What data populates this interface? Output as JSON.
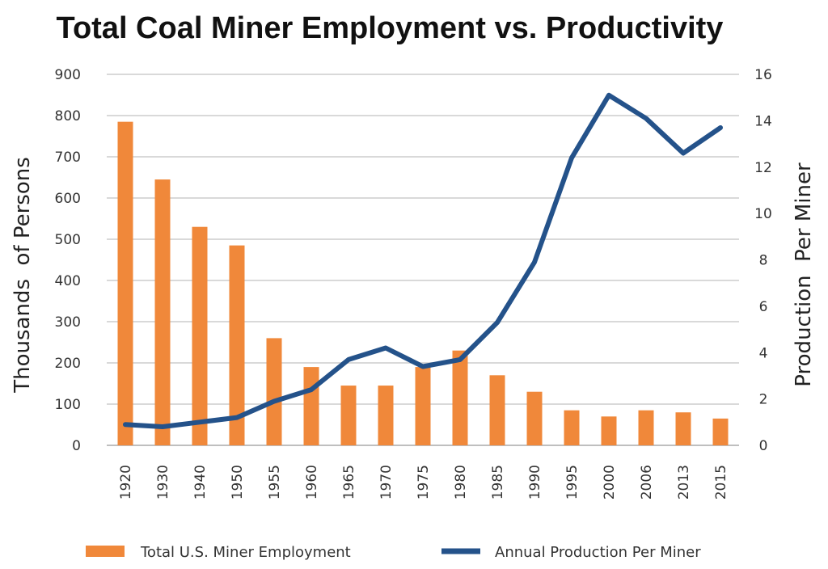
{
  "chart_data": {
    "type": "bar+line",
    "title": "Total Coal Miner Employment vs. Productivity",
    "categories": [
      "1920",
      "1930",
      "1940",
      "1950",
      "1955",
      "1960",
      "1965",
      "1970",
      "1975",
      "1980",
      "1985",
      "1990",
      "1995",
      "2000",
      "2006",
      "2013",
      "2015"
    ],
    "series": [
      {
        "name": "Total U.S. Miner Employment",
        "type": "bar",
        "axis": "left",
        "color": "#F0883A",
        "values": [
          785,
          645,
          530,
          485,
          260,
          190,
          145,
          145,
          190,
          230,
          170,
          130,
          85,
          70,
          85,
          80,
          65
        ]
      },
      {
        "name": "Annual Production Per Miner",
        "type": "line",
        "axis": "right",
        "color": "#24528A",
        "values": [
          0.9,
          0.8,
          1.0,
          1.2,
          1.9,
          2.4,
          3.7,
          4.2,
          3.4,
          3.7,
          5.3,
          7.9,
          12.4,
          15.1,
          14.1,
          12.6,
          13.7
        ]
      }
    ],
    "y_left": {
      "label": "Thousands  of Persons",
      "min": 0,
      "max": 900,
      "ticks": [
        "0",
        "100",
        "200",
        "300",
        "400",
        "500",
        "600",
        "700",
        "800",
        "900"
      ]
    },
    "y_right": {
      "label": "Production  Per Miner",
      "min": 0,
      "max": 16,
      "ticks": [
        "0",
        "2",
        "4",
        "6",
        "8",
        "10",
        "12",
        "14",
        "16"
      ]
    },
    "grid": true,
    "legend_position": "bottom",
    "grid_color": "#D9D9D9",
    "axis_color": "#BFBFBF"
  }
}
